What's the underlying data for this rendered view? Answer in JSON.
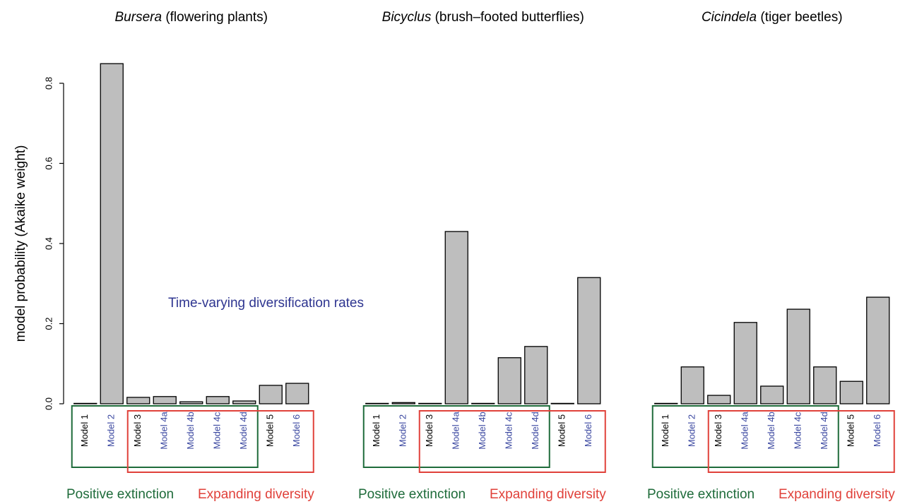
{
  "chart_data": [
    {
      "type": "bar",
      "genus": "Bursera",
      "common_name": "(flowering plants)",
      "ylabel": "model probability (Akaike weight)",
      "annotation": {
        "text": "Time-varying diversification rates",
        "color": "#2e3590"
      },
      "categories": [
        "Model 1",
        "Model 2",
        "Model 3",
        "Model 4a",
        "Model 4b",
        "Model 4c",
        "Model 4d",
        "Model 5",
        "Model 6"
      ],
      "category_colors": [
        "#000000",
        "#3a47a0",
        "#000000",
        "#3a47a0",
        "#3a47a0",
        "#3a47a0",
        "#3a47a0",
        "#000000",
        "#3a47a0"
      ],
      "values": [
        0.001,
        0.849,
        0.016,
        0.018,
        0.005,
        0.018,
        0.007,
        0.046,
        0.051
      ],
      "color": "#bebebe",
      "ylim": [
        0,
        0.85
      ],
      "yticks": [
        {
          "value": 0,
          "label": "0.0"
        },
        0.2,
        0.4,
        0.6,
        0.8
      ],
      "groups": [
        {
          "label": "Positive extinction",
          "color": "#1e6b3a",
          "span": [
            "Model 1",
            "Model 4d"
          ]
        },
        {
          "label": "Expanding diversity",
          "color": "#e0413a",
          "span": [
            "Model 3",
            "Model 6"
          ]
        }
      ]
    },
    {
      "type": "bar",
      "genus": "Bicyclus",
      "common_name": "(brush–footed butterflies)",
      "categories": [
        "Model 1",
        "Model 2",
        "Model 3",
        "Model 4a",
        "Model 4b",
        "Model 4c",
        "Model 4d",
        "Model 5",
        "Model 6"
      ],
      "category_colors": [
        "#000000",
        "#3a47a0",
        "#000000",
        "#3a47a0",
        "#3a47a0",
        "#3a47a0",
        "#3a47a0",
        "#000000",
        "#3a47a0"
      ],
      "values": [
        0.001,
        0.003,
        0.001,
        0.43,
        0.001,
        0.115,
        0.143,
        0.001,
        0.315
      ],
      "color": "#bebebe",
      "ylim": [
        0,
        0.85
      ],
      "groups": [
        {
          "label": "Positive extinction",
          "color": "#1e6b3a",
          "span": [
            "Model 1",
            "Model 4d"
          ]
        },
        {
          "label": "Expanding diversity",
          "color": "#e0413a",
          "span": [
            "Model 3",
            "Model 6"
          ]
        }
      ]
    },
    {
      "type": "bar",
      "genus": "Cicindela",
      "common_name": "(tiger beetles)",
      "categories": [
        "Model 1",
        "Model 2",
        "Model 3",
        "Model 4a",
        "Model 4b",
        "Model 4c",
        "Model 4d",
        "Model 5",
        "Model 6"
      ],
      "category_colors": [
        "#000000",
        "#3a47a0",
        "#000000",
        "#3a47a0",
        "#3a47a0",
        "#3a47a0",
        "#3a47a0",
        "#000000",
        "#3a47a0"
      ],
      "values": [
        0.001,
        0.092,
        0.021,
        0.203,
        0.044,
        0.236,
        0.092,
        0.056,
        0.266
      ],
      "color": "#bebebe",
      "ylim": [
        0,
        0.85
      ],
      "groups": [
        {
          "label": "Positive extinction",
          "color": "#1e6b3a",
          "span": [
            "Model 1",
            "Model 4d"
          ]
        },
        {
          "label": "Expanding diversity",
          "color": "#e0413a",
          "span": [
            "Model 3",
            "Model 6"
          ]
        }
      ]
    }
  ]
}
